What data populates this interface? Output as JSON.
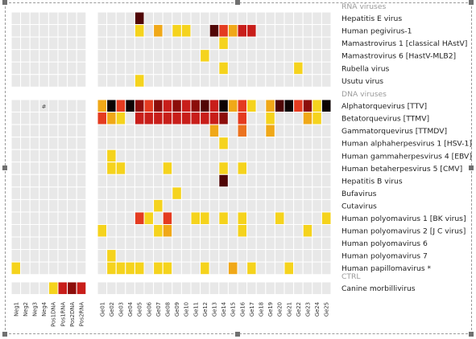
{
  "chart_data": {
    "type": "heatmap",
    "color_scale": {
      "1": "#f5d31d",
      "2": "#f0a818",
      "3": "#eb7320",
      "4": "#e43b20",
      "5": "#c81e1a",
      "6": "#8c0d0a",
      "7": "#500606",
      "8": "#0d0303"
    },
    "empty_color": "#e8e8e8",
    "controls": [
      "Neg1",
      "Neg2",
      "Neg3",
      "Neg4",
      "Pos1DNA",
      "Pos1RNA",
      "Pos2DNA",
      "Pos2RNA"
    ],
    "samples": [
      "Ge01",
      "Ge02",
      "Ge03",
      "Ge04",
      "Ge05",
      "Ge06",
      "Ge07",
      "Ge08",
      "Ge09",
      "Ge10",
      "Ge11",
      "Ge12",
      "Ge13",
      "Ge14",
      "Ge15",
      "Ge16",
      "Ge17",
      "Ge18",
      "Ge19",
      "Ge20",
      "Ge21",
      "Ge22",
      "Ge23",
      "Ge24",
      "Ge25"
    ],
    "groups": [
      {
        "title": "RNA viruses",
        "rows": [
          {
            "name": "Hepatitis E virus",
            "controls": [
              0,
              0,
              0,
              0,
              0,
              0,
              0,
              0
            ],
            "samples": [
              0,
              0,
              0,
              0,
              7,
              0,
              0,
              0,
              0,
              0,
              0,
              0,
              0,
              0,
              0,
              0,
              0,
              0,
              0,
              0,
              0,
              0,
              0,
              0,
              0
            ]
          },
          {
            "name": "Human pegivirus-1",
            "controls": [
              0,
              0,
              0,
              0,
              0,
              0,
              0,
              0
            ],
            "samples": [
              0,
              0,
              0,
              0,
              1,
              0,
              2,
              0,
              1,
              1,
              0,
              0,
              7,
              4,
              2,
              5,
              5,
              0,
              0,
              0,
              0,
              0,
              0,
              0,
              0
            ]
          },
          {
            "name": "Mamastrovirus 1 [classical HAstV]",
            "controls": [
              0,
              0,
              0,
              0,
              0,
              0,
              0,
              0
            ],
            "samples": [
              0,
              0,
              0,
              0,
              0,
              0,
              0,
              0,
              0,
              0,
              0,
              0,
              0,
              1,
              0,
              0,
              0,
              0,
              0,
              0,
              0,
              0,
              0,
              0,
              0
            ]
          },
          {
            "name": "Mamastrovirus 6 [HastV-MLB2]",
            "controls": [
              0,
              0,
              0,
              0,
              0,
              0,
              0,
              0
            ],
            "samples": [
              0,
              0,
              0,
              0,
              0,
              0,
              0,
              0,
              0,
              0,
              0,
              1,
              0,
              0,
              0,
              0,
              0,
              0,
              0,
              0,
              0,
              0,
              0,
              0,
              0
            ]
          },
          {
            "name": "Rubella virus",
            "controls": [
              0,
              0,
              0,
              0,
              0,
              0,
              0,
              0
            ],
            "samples": [
              0,
              0,
              0,
              0,
              0,
              0,
              0,
              0,
              0,
              0,
              0,
              0,
              0,
              1,
              0,
              0,
              0,
              0,
              0,
              0,
              0,
              1,
              0,
              0,
              0
            ]
          },
          {
            "name": "Usutu virus",
            "controls": [
              0,
              0,
              0,
              0,
              0,
              0,
              0,
              0
            ],
            "samples": [
              0,
              0,
              0,
              0,
              1,
              0,
              0,
              0,
              0,
              0,
              0,
              0,
              0,
              0,
              0,
              0,
              0,
              0,
              0,
              0,
              0,
              0,
              0,
              0,
              0
            ]
          }
        ]
      },
      {
        "title": "DNA viruses",
        "rows": [
          {
            "name": "Alphatorquevirus [TTV]",
            "controls": [
              0,
              0,
              0,
              0,
              0,
              0,
              0,
              0
            ],
            "samples": [
              2,
              8,
              4,
              8,
              6,
              4,
              6,
              5,
              6,
              5,
              6,
              7,
              5,
              8,
              2,
              4,
              1,
              0,
              2,
              7,
              8,
              4,
              6,
              1,
              8
            ]
          },
          {
            "name": "Betatorquevirus [TTMV]",
            "controls": [
              0,
              0,
              0,
              0,
              0,
              0,
              0,
              0
            ],
            "samples": [
              4,
              2,
              1,
              0,
              5,
              5,
              5,
              5,
              5,
              5,
              5,
              5,
              5,
              6,
              0,
              4,
              0,
              0,
              1,
              0,
              0,
              0,
              2,
              1,
              0
            ]
          },
          {
            "name": "Gammatorquevirus [TTMDV]",
            "controls": [
              0,
              0,
              0,
              0,
              0,
              0,
              0,
              0
            ],
            "samples": [
              0,
              0,
              0,
              0,
              0,
              0,
              0,
              0,
              0,
              0,
              0,
              0,
              2,
              0,
              0,
              3,
              0,
              0,
              2,
              0,
              0,
              0,
              0,
              0,
              0
            ]
          },
          {
            "name": "Human alphaherpesvirus 1 [HSV-1]",
            "controls": [
              0,
              0,
              0,
              0,
              0,
              0,
              0,
              0
            ],
            "samples": [
              0,
              0,
              0,
              0,
              0,
              0,
              0,
              0,
              0,
              0,
              0,
              0,
              0,
              1,
              0,
              0,
              0,
              0,
              0,
              0,
              0,
              0,
              0,
              0,
              0
            ]
          },
          {
            "name": "Human gammaherpesvirus 4 [EBV]",
            "controls": [
              0,
              0,
              0,
              0,
              0,
              0,
              0,
              0
            ],
            "samples": [
              0,
              1,
              0,
              0,
              0,
              0,
              0,
              0,
              0,
              0,
              0,
              0,
              0,
              0,
              0,
              0,
              0,
              0,
              0,
              0,
              0,
              0,
              0,
              0,
              0
            ]
          },
          {
            "name": "Human betaherpesvirus 5 [CMV]",
            "controls": [
              0,
              0,
              0,
              0,
              0,
              0,
              0,
              0
            ],
            "samples": [
              0,
              1,
              1,
              0,
              0,
              0,
              0,
              1,
              0,
              0,
              0,
              0,
              0,
              1,
              0,
              1,
              0,
              0,
              0,
              0,
              0,
              0,
              0,
              0,
              0
            ]
          },
          {
            "name": "Hepatitis B virus",
            "controls": [
              0,
              0,
              0,
              0,
              0,
              0,
              0,
              0
            ],
            "samples": [
              0,
              0,
              0,
              0,
              0,
              0,
              0,
              0,
              0,
              0,
              0,
              0,
              0,
              7,
              0,
              0,
              0,
              0,
              0,
              0,
              0,
              0,
              0,
              0,
              0
            ]
          },
          {
            "name": "Bufavirus",
            "controls": [
              0,
              0,
              0,
              0,
              0,
              0,
              0,
              0
            ],
            "samples": [
              0,
              0,
              0,
              0,
              0,
              0,
              0,
              0,
              1,
              0,
              0,
              0,
              0,
              0,
              0,
              0,
              0,
              0,
              0,
              0,
              0,
              0,
              0,
              0,
              0
            ]
          },
          {
            "name": "Cutavirus",
            "controls": [
              0,
              0,
              0,
              0,
              0,
              0,
              0,
              0
            ],
            "samples": [
              0,
              0,
              0,
              0,
              0,
              0,
              1,
              0,
              0,
              0,
              0,
              0,
              0,
              0,
              0,
              0,
              0,
              0,
              0,
              0,
              0,
              0,
              0,
              0,
              0
            ]
          },
          {
            "name": "Human polyomavirus 1 [BK virus]",
            "controls": [
              0,
              0,
              0,
              0,
              0,
              0,
              0,
              0
            ],
            "samples": [
              0,
              0,
              0,
              0,
              4,
              1,
              0,
              4,
              0,
              0,
              1,
              1,
              0,
              1,
              0,
              1,
              0,
              0,
              0,
              1,
              0,
              0,
              0,
              0,
              1
            ]
          },
          {
            "name": "Human polyomavirus 2 [J C virus]",
            "controls": [
              0,
              0,
              0,
              0,
              0,
              0,
              0,
              0
            ],
            "samples": [
              1,
              0,
              0,
              0,
              0,
              0,
              1,
              2,
              0,
              0,
              0,
              0,
              0,
              0,
              0,
              1,
              0,
              0,
              0,
              0,
              0,
              0,
              1,
              0,
              0
            ]
          },
          {
            "name": "Human polyomavirus 6",
            "controls": [
              0,
              0,
              0,
              0,
              0,
              0,
              0,
              0
            ],
            "samples": [
              0,
              0,
              0,
              0,
              0,
              0,
              0,
              0,
              0,
              0,
              0,
              0,
              0,
              0,
              0,
              0,
              0,
              0,
              0,
              0,
              0,
              0,
              0,
              0,
              0
            ]
          },
          {
            "name": "Human polyomavirus 7",
            "controls": [
              0,
              0,
              0,
              0,
              0,
              0,
              0,
              0
            ],
            "samples": [
              0,
              1,
              0,
              0,
              0,
              0,
              0,
              0,
              0,
              0,
              0,
              0,
              0,
              0,
              0,
              0,
              0,
              0,
              0,
              0,
              0,
              0,
              0,
              0,
              0
            ]
          },
          {
            "name": "Human papillomavirus *",
            "controls": [
              1,
              0,
              0,
              0,
              0,
              0,
              0,
              0
            ],
            "samples": [
              0,
              1,
              1,
              1,
              1,
              0,
              1,
              1,
              0,
              0,
              0,
              1,
              0,
              0,
              2,
              0,
              1,
              0,
              0,
              0,
              1,
              0,
              0,
              0,
              0
            ]
          }
        ]
      },
      {
        "title": "CTRL",
        "rows": [
          {
            "name": "Canine morbillivirus",
            "controls": [
              0,
              0,
              0,
              0,
              1,
              5,
              6,
              5
            ],
            "samples": [
              0,
              0,
              0,
              0,
              0,
              0,
              0,
              0,
              0,
              0,
              0,
              0,
              0,
              0,
              0,
              0,
              0,
              0,
              0,
              0,
              0,
              0,
              0,
              0,
              0
            ]
          }
        ]
      }
    ],
    "annotations": [
      {
        "text": "#",
        "group": 1,
        "row": 0,
        "control": 3
      }
    ],
    "grid": true,
    "legend": "none"
  }
}
